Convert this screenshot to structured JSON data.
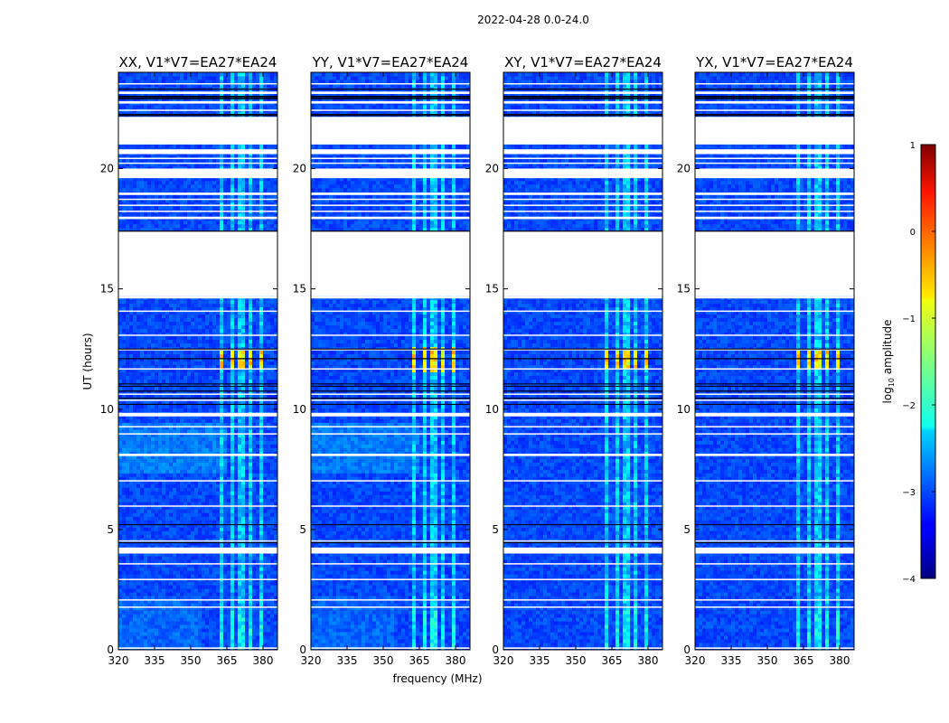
{
  "figure_title": "2022-04-28 0.0-24.0",
  "colorbar": {
    "label": "log₁₀ amplitude",
    "label_main": "log",
    "label_sub": "10",
    "label_rest": " amplitude",
    "range": [
      -4,
      1
    ],
    "ticks": [
      1,
      0,
      -1,
      -2,
      -3,
      -4
    ],
    "tick_labels": [
      "1",
      "0",
      "−1",
      "−2",
      "−3",
      "−4"
    ],
    "colormap": "jet"
  },
  "chart_data": [
    {
      "type": "heatmap",
      "title": "XX, V1*V7=EA27*EA24",
      "xlabel": "",
      "ylabel": "UT (hours)",
      "xlim": [
        320,
        386
      ],
      "ylim": [
        0,
        24
      ],
      "x_ticks": [
        320,
        335,
        350,
        365,
        380
      ],
      "x_tick_labels": [
        "320",
        "335",
        "350",
        "365",
        "380"
      ],
      "y_ticks": [
        0,
        5,
        10,
        15,
        20
      ],
      "y_tick_labels": [
        "0",
        "5",
        "10",
        "15",
        "20"
      ],
      "bright_bursts": [
        11.7,
        12.4
      ],
      "lower_band_elevated": true
    },
    {
      "type": "heatmap",
      "title": "YY, V1*V7=EA27*EA24",
      "xlabel": "frequency (MHz)",
      "ylabel": "",
      "xlim": [
        320,
        386
      ],
      "ylim": [
        0,
        24
      ],
      "x_ticks": [
        320,
        335,
        350,
        365,
        380
      ],
      "x_tick_labels": [
        "320",
        "335",
        "350",
        "365",
        "380"
      ],
      "y_ticks": [
        0,
        5,
        10,
        15,
        20
      ],
      "y_tick_labels": [
        "0",
        "5",
        "10",
        "15",
        "20"
      ],
      "bright_bursts": [
        11.6,
        12.6
      ],
      "lower_band_elevated": true
    },
    {
      "type": "heatmap",
      "title": "XY, V1*V7=EA27*EA24",
      "xlabel": "",
      "ylabel": "",
      "xlim": [
        320,
        386
      ],
      "ylim": [
        0,
        24
      ],
      "x_ticks": [
        320,
        335,
        350,
        365,
        380
      ],
      "x_tick_labels": [
        "320",
        "335",
        "350",
        "365",
        "380"
      ],
      "y_ticks": [
        0,
        5,
        10,
        15,
        20
      ],
      "y_tick_labels": [
        "0",
        "5",
        "10",
        "15",
        "20"
      ],
      "bright_bursts": [
        11.7,
        12.4
      ],
      "lower_band_elevated": false
    },
    {
      "type": "heatmap",
      "title": "YX, V1*V7=EA27*EA24",
      "xlabel": "",
      "ylabel": "",
      "xlim": [
        320,
        386
      ],
      "ylim": [
        0,
        24
      ],
      "x_ticks": [
        320,
        335,
        350,
        365,
        380
      ],
      "x_tick_labels": [
        "320",
        "335",
        "350",
        "365",
        "380"
      ],
      "y_ticks": [
        0,
        5,
        10,
        15,
        20
      ],
      "y_tick_labels": [
        "0",
        "5",
        "10",
        "15",
        "20"
      ],
      "bright_bursts": [
        11.7,
        12.4
      ],
      "lower_band_elevated": false
    }
  ],
  "rfi_channels_mhz": [
    [
      362,
      364
    ],
    [
      366,
      368
    ],
    [
      370,
      372
    ],
    [
      374,
      376
    ],
    [
      378,
      380
    ]
  ],
  "flagged_ut_ranges": [
    [
      0.04,
      0.1
    ],
    [
      1.75,
      1.8
    ],
    [
      2.05,
      2.1
    ],
    [
      2.9,
      2.95
    ],
    [
      3.55,
      3.6
    ],
    [
      4.0,
      4.25
    ],
    [
      4.5,
      4.55
    ],
    [
      5.95,
      6.0
    ],
    [
      7.0,
      7.05
    ],
    [
      8.05,
      8.15
    ],
    [
      8.95,
      9.0
    ],
    [
      9.25,
      9.3
    ],
    [
      9.7,
      9.85
    ],
    [
      10.35,
      10.4
    ],
    [
      10.6,
      10.65
    ],
    [
      11.65,
      11.7
    ],
    [
      12.45,
      12.5
    ],
    [
      13.05,
      13.1
    ],
    [
      14.05,
      14.1
    ],
    [
      14.6,
      14.7
    ],
    [
      14.7,
      17.4
    ],
    [
      17.9,
      18.0
    ],
    [
      18.2,
      18.25
    ],
    [
      18.45,
      18.5
    ],
    [
      18.7,
      18.75
    ],
    [
      18.9,
      19.0
    ],
    [
      19.6,
      20.0
    ],
    [
      20.2,
      20.25
    ],
    [
      20.4,
      20.45
    ],
    [
      20.6,
      20.8
    ],
    [
      21.0,
      22.15
    ],
    [
      22.4,
      22.45
    ],
    [
      22.7,
      22.8
    ],
    [
      23.1,
      23.2
    ],
    [
      23.5,
      23.55
    ]
  ],
  "dark_ut_lines": [
    4.45,
    5.2,
    10.2,
    10.45,
    10.75,
    10.95,
    11.05,
    12.1,
    12.5,
    17.4,
    22.2,
    22.25,
    22.9,
    22.95,
    23.0,
    23.3
  ]
}
